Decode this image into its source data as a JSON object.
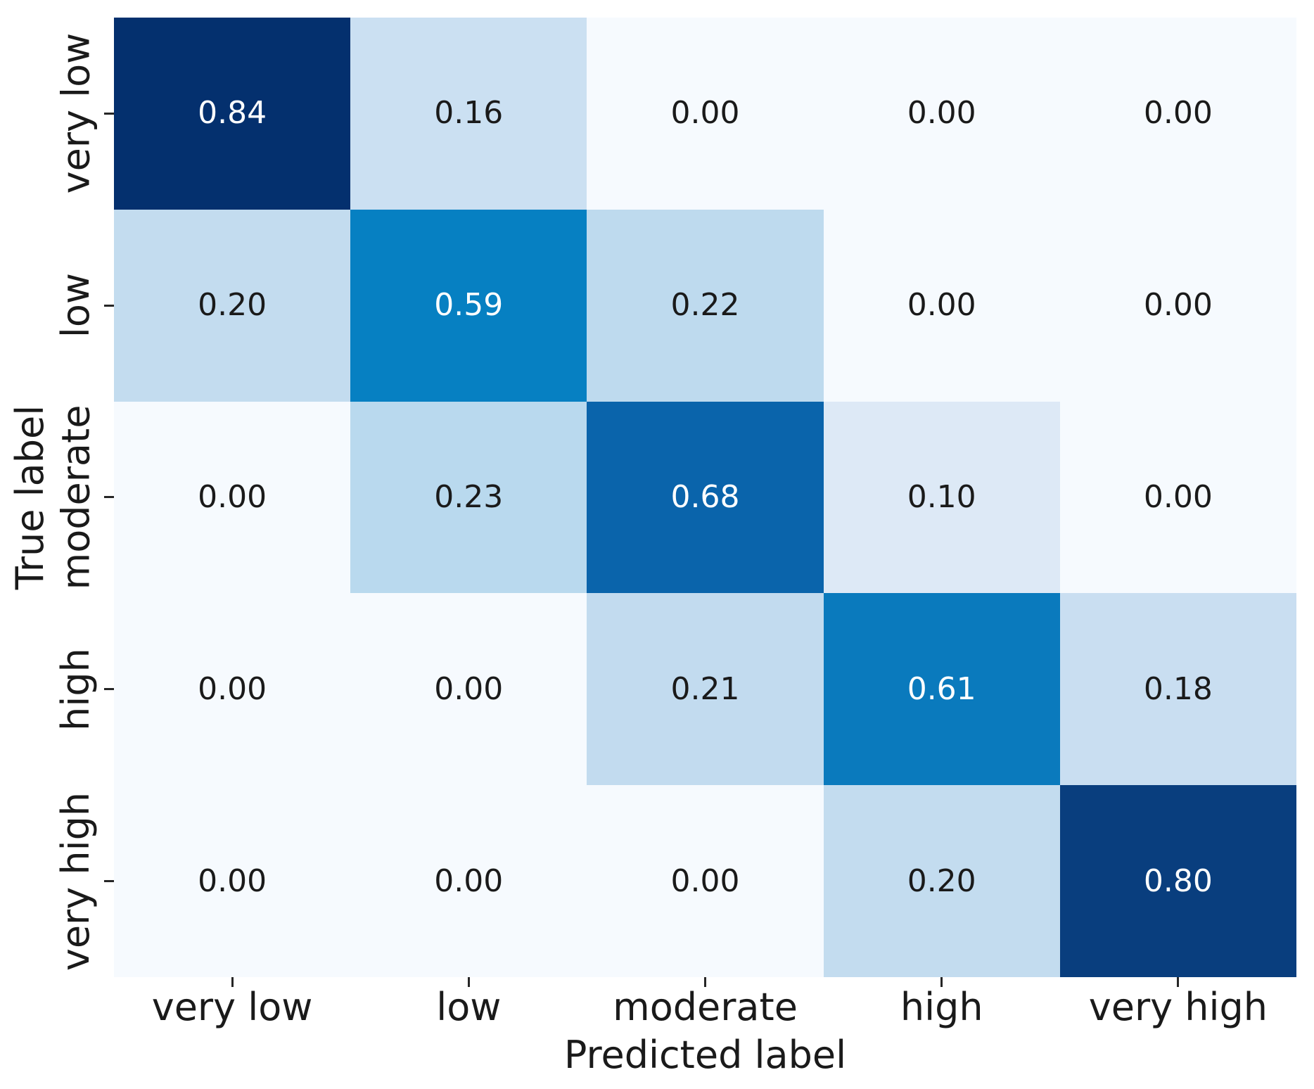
{
  "figure": {
    "background": "#ffffff",
    "tick_color": "#262626",
    "label_color": "#1a1a1a"
  },
  "chart_data": {
    "type": "heatmap",
    "title": "",
    "xlabel": "Predicted label",
    "ylabel": "True label",
    "colormap": "Blues",
    "grid": false,
    "legend": "none",
    "value_range": [
      0.0,
      0.84
    ],
    "x_categories": [
      "very low",
      "low",
      "moderate",
      "high",
      "very high"
    ],
    "y_categories": [
      "very low",
      "low",
      "moderate",
      "high",
      "very high"
    ],
    "values": [
      [
        0.84,
        0.16,
        0.0,
        0.0,
        0.0
      ],
      [
        0.2,
        0.59,
        0.22,
        0.0,
        0.0
      ],
      [
        0.0,
        0.23,
        0.68,
        0.1,
        0.0
      ],
      [
        0.0,
        0.0,
        0.21,
        0.61,
        0.18
      ],
      [
        0.0,
        0.0,
        0.0,
        0.2,
        0.8
      ]
    ],
    "value_labels": [
      [
        "0.84",
        "0.16",
        "0.00",
        "0.00",
        "0.00"
      ],
      [
        "0.20",
        "0.59",
        "0.22",
        "0.00",
        "0.00"
      ],
      [
        "0.00",
        "0.23",
        "0.68",
        "0.10",
        "0.00"
      ],
      [
        "0.00",
        "0.00",
        "0.21",
        "0.61",
        "0.18"
      ],
      [
        "0.00",
        "0.00",
        "0.00",
        "0.20",
        "0.80"
      ]
    ],
    "cell_colors": [
      [
        "#04306e",
        "#cbe0f2",
        "#f6fafe",
        "#f6fafe",
        "#f6fafe"
      ],
      [
        "#c3dcef",
        "#0680c2",
        "#bedaee",
        "#f6fafe",
        "#f6fafe"
      ],
      [
        "#f6fafe",
        "#b9d9ee",
        "#0a64ab",
        "#dde9f6",
        "#f6fafe"
      ],
      [
        "#f6fafe",
        "#f6fafe",
        "#c2dbef",
        "#0a7abd",
        "#c9def1"
      ],
      [
        "#f6fafe",
        "#f6fafe",
        "#f6fafe",
        "#c3dcef",
        "#093e7e"
      ]
    ],
    "cell_text_colors": [
      [
        "#ffffff",
        "#1a1a1a",
        "#1a1a1a",
        "#1a1a1a",
        "#1a1a1a"
      ],
      [
        "#1a1a1a",
        "#ffffff",
        "#1a1a1a",
        "#1a1a1a",
        "#1a1a1a"
      ],
      [
        "#1a1a1a",
        "#1a1a1a",
        "#ffffff",
        "#1a1a1a",
        "#1a1a1a"
      ],
      [
        "#1a1a1a",
        "#1a1a1a",
        "#1a1a1a",
        "#ffffff",
        "#1a1a1a"
      ],
      [
        "#1a1a1a",
        "#1a1a1a",
        "#1a1a1a",
        "#1a1a1a",
        "#ffffff"
      ]
    ]
  }
}
